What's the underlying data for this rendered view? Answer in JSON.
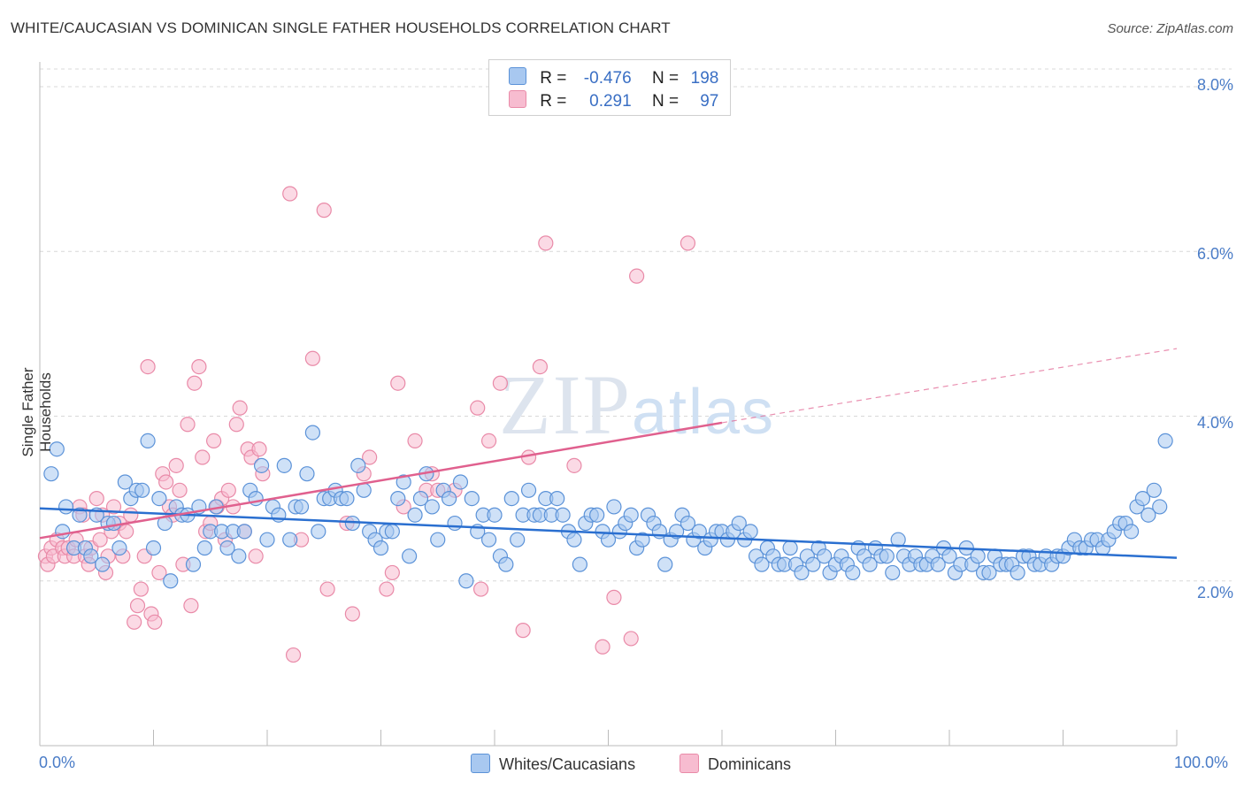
{
  "title": "WHITE/CAUCASIAN VS DOMINICAN SINGLE FATHER HOUSEHOLDS CORRELATION CHART",
  "source": "Source: ZipAtlas.com",
  "watermark": "ZIPatlas",
  "colors": {
    "blue_fill": "#a8c8f0",
    "blue_stroke": "#5b92d8",
    "blue_line": "#2a6fd0",
    "pink_fill": "#f7bcd0",
    "pink_stroke": "#e98aa8",
    "pink_line": "#e0608e",
    "tick_text": "#4a7cc7"
  },
  "legend": {
    "rows": [
      {
        "r_label": "R =",
        "r_value": "-0.476",
        "n_label": "N =",
        "n_value": "198"
      },
      {
        "r_label": "R =",
        "r_value": "0.291",
        "n_label": "N =",
        "n_value": "97"
      }
    ]
  },
  "bottom_legend": {
    "items": [
      "Whites/Caucasians",
      "Dominicans"
    ]
  },
  "chart_data": {
    "type": "scatter",
    "xlabel": "",
    "ylabel": "Single Father Households",
    "xlim": [
      0,
      100
    ],
    "ylim": [
      0,
      8.3
    ],
    "x_tick_labels": [
      "0.0%",
      "100.0%"
    ],
    "y_ticks": [
      2.0,
      4.0,
      6.0,
      8.0
    ],
    "y_tick_labels": [
      "2.0%",
      "4.0%",
      "6.0%",
      "8.0%"
    ],
    "grid": "horizontal dashed",
    "legend_placement": "top-center",
    "series": [
      {
        "name": "Whites/Caucasians",
        "color": "#5b92d8",
        "trend": {
          "x": [
            0,
            100
          ],
          "y": [
            2.88,
            2.28
          ],
          "dashed_from": null
        },
        "points": [
          [
            1,
            3.3
          ],
          [
            1.5,
            3.6
          ],
          [
            2,
            2.6
          ],
          [
            2.3,
            2.9
          ],
          [
            3,
            2.4
          ],
          [
            3.5,
            2.8
          ],
          [
            4,
            2.4
          ],
          [
            4.5,
            2.3
          ],
          [
            5,
            2.8
          ],
          [
            5.5,
            2.2
          ],
          [
            6,
            2.7
          ],
          [
            6.5,
            2.7
          ],
          [
            7,
            2.4
          ],
          [
            7.5,
            3.2
          ],
          [
            8,
            3.0
          ],
          [
            8.5,
            3.1
          ],
          [
            9,
            3.1
          ],
          [
            9.5,
            3.7
          ],
          [
            10,
            2.4
          ],
          [
            10.5,
            3.0
          ],
          [
            11,
            2.7
          ],
          [
            11.5,
            2.0
          ],
          [
            12,
            2.9
          ],
          [
            12.5,
            2.8
          ],
          [
            13,
            2.8
          ],
          [
            13.5,
            2.2
          ],
          [
            14,
            2.9
          ],
          [
            14.5,
            2.4
          ],
          [
            15,
            2.6
          ],
          [
            15.5,
            2.9
          ],
          [
            16,
            2.6
          ],
          [
            16.5,
            2.4
          ],
          [
            17,
            2.6
          ],
          [
            17.5,
            2.3
          ],
          [
            18,
            2.6
          ],
          [
            18.5,
            3.1
          ],
          [
            19,
            3.0
          ],
          [
            19.5,
            3.4
          ],
          [
            20,
            2.5
          ],
          [
            20.5,
            2.9
          ],
          [
            21,
            2.8
          ],
          [
            21.5,
            3.4
          ],
          [
            22,
            2.5
          ],
          [
            22.5,
            2.9
          ],
          [
            23,
            2.9
          ],
          [
            23.5,
            3.3
          ],
          [
            24,
            3.8
          ],
          [
            24.5,
            2.6
          ],
          [
            25,
            3.0
          ],
          [
            25.5,
            3.0
          ],
          [
            26,
            3.1
          ],
          [
            26.5,
            3.0
          ],
          [
            27,
            3.0
          ],
          [
            27.5,
            2.7
          ],
          [
            28,
            3.4
          ],
          [
            28.5,
            3.1
          ],
          [
            29,
            2.6
          ],
          [
            29.5,
            2.5
          ],
          [
            30,
            2.4
          ],
          [
            30.5,
            2.6
          ],
          [
            31,
            2.6
          ],
          [
            31.5,
            3.0
          ],
          [
            32,
            3.2
          ],
          [
            32.5,
            2.3
          ],
          [
            33,
            2.8
          ],
          [
            33.5,
            3.0
          ],
          [
            34,
            3.3
          ],
          [
            34.5,
            2.9
          ],
          [
            35,
            2.5
          ],
          [
            35.5,
            3.1
          ],
          [
            36,
            3.0
          ],
          [
            36.5,
            2.7
          ],
          [
            37,
            3.2
          ],
          [
            37.5,
            2.0
          ],
          [
            38,
            3.0
          ],
          [
            38.5,
            2.6
          ],
          [
            39,
            2.8
          ],
          [
            39.5,
            2.5
          ],
          [
            40,
            2.8
          ],
          [
            40.5,
            2.3
          ],
          [
            41,
            2.2
          ],
          [
            41.5,
            3.0
          ],
          [
            42,
            2.5
          ],
          [
            42.5,
            2.8
          ],
          [
            43,
            3.1
          ],
          [
            43.5,
            2.8
          ],
          [
            44,
            2.8
          ],
          [
            44.5,
            3.0
          ],
          [
            45,
            2.8
          ],
          [
            45.5,
            3.0
          ],
          [
            46,
            2.8
          ],
          [
            46.5,
            2.6
          ],
          [
            47,
            2.5
          ],
          [
            47.5,
            2.2
          ],
          [
            48,
            2.7
          ],
          [
            48.5,
            2.8
          ],
          [
            49,
            2.8
          ],
          [
            49.5,
            2.6
          ],
          [
            50,
            2.5
          ],
          [
            50.5,
            2.9
          ],
          [
            51,
            2.6
          ],
          [
            51.5,
            2.7
          ],
          [
            52,
            2.8
          ],
          [
            52.5,
            2.4
          ],
          [
            53,
            2.5
          ],
          [
            53.5,
            2.8
          ],
          [
            54,
            2.7
          ],
          [
            54.5,
            2.6
          ],
          [
            55,
            2.2
          ],
          [
            55.5,
            2.5
          ],
          [
            56,
            2.6
          ],
          [
            56.5,
            2.8
          ],
          [
            57,
            2.7
          ],
          [
            57.5,
            2.5
          ],
          [
            58,
            2.6
          ],
          [
            58.5,
            2.4
          ],
          [
            59,
            2.5
          ],
          [
            59.5,
            2.6
          ],
          [
            60,
            2.6
          ],
          [
            60.5,
            2.5
          ],
          [
            61,
            2.6
          ],
          [
            61.5,
            2.7
          ],
          [
            62,
            2.5
          ],
          [
            62.5,
            2.6
          ],
          [
            63,
            2.3
          ],
          [
            63.5,
            2.2
          ],
          [
            64,
            2.4
          ],
          [
            64.5,
            2.3
          ],
          [
            65,
            2.2
          ],
          [
            65.5,
            2.2
          ],
          [
            66,
            2.4
          ],
          [
            66.5,
            2.2
          ],
          [
            67,
            2.1
          ],
          [
            67.5,
            2.3
          ],
          [
            68,
            2.2
          ],
          [
            68.5,
            2.4
          ],
          [
            69,
            2.3
          ],
          [
            69.5,
            2.1
          ],
          [
            70,
            2.2
          ],
          [
            70.5,
            2.3
          ],
          [
            71,
            2.2
          ],
          [
            71.5,
            2.1
          ],
          [
            72,
            2.4
          ],
          [
            72.5,
            2.3
          ],
          [
            73,
            2.2
          ],
          [
            73.5,
            2.4
          ],
          [
            74,
            2.3
          ],
          [
            74.5,
            2.3
          ],
          [
            75,
            2.1
          ],
          [
            75.5,
            2.5
          ],
          [
            76,
            2.3
          ],
          [
            76.5,
            2.2
          ],
          [
            77,
            2.3
          ],
          [
            77.5,
            2.2
          ],
          [
            78,
            2.2
          ],
          [
            78.5,
            2.3
          ],
          [
            79,
            2.2
          ],
          [
            79.5,
            2.4
          ],
          [
            80,
            2.3
          ],
          [
            80.5,
            2.1
          ],
          [
            81,
            2.2
          ],
          [
            81.5,
            2.4
          ],
          [
            82,
            2.2
          ],
          [
            82.5,
            2.3
          ],
          [
            83,
            2.1
          ],
          [
            83.5,
            2.1
          ],
          [
            84,
            2.3
          ],
          [
            84.5,
            2.2
          ],
          [
            85,
            2.2
          ],
          [
            85.5,
            2.2
          ],
          [
            86,
            2.1
          ],
          [
            86.5,
            2.3
          ],
          [
            87,
            2.3
          ],
          [
            87.5,
            2.2
          ],
          [
            88,
            2.2
          ],
          [
            88.5,
            2.3
          ],
          [
            89,
            2.2
          ],
          [
            89.5,
            2.3
          ],
          [
            90,
            2.3
          ],
          [
            90.5,
            2.4
          ],
          [
            91,
            2.5
          ],
          [
            91.5,
            2.4
          ],
          [
            92,
            2.4
          ],
          [
            92.5,
            2.5
          ],
          [
            93,
            2.5
          ],
          [
            93.5,
            2.4
          ],
          [
            94,
            2.5
          ],
          [
            94.5,
            2.6
          ],
          [
            95,
            2.7
          ],
          [
            95.5,
            2.7
          ],
          [
            96,
            2.6
          ],
          [
            96.5,
            2.9
          ],
          [
            97,
            3.0
          ],
          [
            97.5,
            2.8
          ],
          [
            98,
            3.1
          ],
          [
            98.5,
            2.9
          ],
          [
            99,
            3.7
          ]
        ]
      },
      {
        "name": "Dominicans",
        "color": "#e98aa8",
        "trend": {
          "x": [
            0,
            60,
            100
          ],
          "y": [
            2.52,
            3.92,
            4.82
          ],
          "dashed_from": 60
        },
        "points": [
          [
            0.5,
            2.3
          ],
          [
            0.7,
            2.2
          ],
          [
            1,
            2.4
          ],
          [
            1.2,
            2.3
          ],
          [
            1.5,
            2.5
          ],
          [
            2,
            2.4
          ],
          [
            2.2,
            2.3
          ],
          [
            2.5,
            2.4
          ],
          [
            3,
            2.3
          ],
          [
            3.2,
            2.5
          ],
          [
            3.5,
            2.9
          ],
          [
            3.8,
            2.8
          ],
          [
            4,
            2.3
          ],
          [
            4.3,
            2.2
          ],
          [
            4.5,
            2.4
          ],
          [
            5,
            3.0
          ],
          [
            5.3,
            2.5
          ],
          [
            5.5,
            2.8
          ],
          [
            5.8,
            2.1
          ],
          [
            6,
            2.3
          ],
          [
            6.3,
            2.6
          ],
          [
            6.5,
            2.9
          ],
          [
            7,
            2.7
          ],
          [
            7.3,
            2.3
          ],
          [
            7.6,
            2.6
          ],
          [
            8,
            2.8
          ],
          [
            8.3,
            1.5
          ],
          [
            8.6,
            1.7
          ],
          [
            8.9,
            1.9
          ],
          [
            9.2,
            2.3
          ],
          [
            9.5,
            4.6
          ],
          [
            9.8,
            1.6
          ],
          [
            10.1,
            1.5
          ],
          [
            10.5,
            2.1
          ],
          [
            10.8,
            3.3
          ],
          [
            11.1,
            3.2
          ],
          [
            11.4,
            2.9
          ],
          [
            11.7,
            2.8
          ],
          [
            12,
            3.4
          ],
          [
            12.3,
            3.1
          ],
          [
            12.6,
            2.2
          ],
          [
            13,
            3.9
          ],
          [
            13.3,
            1.7
          ],
          [
            13.6,
            4.4
          ],
          [
            14,
            4.6
          ],
          [
            14.3,
            3.5
          ],
          [
            14.6,
            2.6
          ],
          [
            15,
            2.7
          ],
          [
            15.3,
            3.7
          ],
          [
            15.6,
            2.9
          ],
          [
            16,
            3.0
          ],
          [
            16.3,
            2.5
          ],
          [
            16.6,
            3.1
          ],
          [
            17,
            2.9
          ],
          [
            17.3,
            3.9
          ],
          [
            17.6,
            4.1
          ],
          [
            18,
            2.6
          ],
          [
            18.3,
            3.6
          ],
          [
            18.6,
            3.5
          ],
          [
            19,
            2.3
          ],
          [
            19.3,
            3.6
          ],
          [
            19.6,
            3.3
          ],
          [
            22,
            6.7
          ],
          [
            22.3,
            1.1
          ],
          [
            23,
            2.5
          ],
          [
            24,
            4.7
          ],
          [
            25,
            6.5
          ],
          [
            25.3,
            1.9
          ],
          [
            27,
            2.7
          ],
          [
            27.5,
            1.6
          ],
          [
            28.5,
            3.3
          ],
          [
            29,
            3.5
          ],
          [
            30.5,
            1.9
          ],
          [
            31,
            2.1
          ],
          [
            31.5,
            4.4
          ],
          [
            32,
            2.9
          ],
          [
            33,
            3.7
          ],
          [
            34,
            3.1
          ],
          [
            34.5,
            3.3
          ],
          [
            35,
            3.1
          ],
          [
            36.5,
            3.1
          ],
          [
            38.5,
            4.1
          ],
          [
            38.8,
            1.9
          ],
          [
            39.5,
            3.7
          ],
          [
            40.5,
            4.4
          ],
          [
            42.5,
            1.4
          ],
          [
            43,
            3.5
          ],
          [
            44,
            4.6
          ],
          [
            44.5,
            6.1
          ],
          [
            47,
            3.4
          ],
          [
            49.5,
            1.2
          ],
          [
            50.5,
            1.8
          ],
          [
            52,
            1.3
          ],
          [
            52.5,
            5.7
          ],
          [
            57,
            6.1
          ]
        ]
      }
    ]
  }
}
